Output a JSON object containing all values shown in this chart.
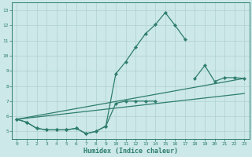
{
  "title": "",
  "xlabel": "Humidex (Indice chaleur)",
  "x_values": [
    0,
    1,
    2,
    3,
    4,
    5,
    6,
    7,
    8,
    9,
    10,
    11,
    12,
    13,
    14,
    15,
    16,
    17,
    18,
    19,
    20,
    21,
    22,
    23
  ],
  "line_peak": [
    null,
    null,
    null,
    null,
    null,
    null,
    null,
    null,
    null,
    null,
    8.8,
    9.6,
    10.55,
    11.45,
    12.05,
    12.85,
    12.0,
    11.1,
    null,
    null,
    null,
    null,
    null,
    null
  ],
  "line_mid": [
    5.8,
    5.6,
    5.2,
    5.1,
    5.1,
    5.1,
    5.2,
    4.85,
    5.0,
    5.35,
    6.85,
    7.0,
    7.0,
    7.0,
    7.0,
    null,
    null,
    null,
    null,
    null,
    null,
    null,
    null,
    null
  ],
  "line_low": [
    5.8,
    5.6,
    5.2,
    5.1,
    5.1,
    5.1,
    5.2,
    4.85,
    5.0,
    5.35,
    null,
    null,
    null,
    null,
    null,
    null,
    null,
    null,
    null,
    null,
    null,
    null,
    null,
    null
  ],
  "line_right": [
    null,
    null,
    null,
    null,
    null,
    null,
    null,
    null,
    null,
    null,
    null,
    null,
    null,
    null,
    null,
    null,
    null,
    null,
    8.5,
    9.35,
    8.3,
    8.55,
    8.55,
    8.5
  ],
  "line_straight": [
    [
      0,
      5.8
    ],
    [
      23,
      8.5
    ]
  ],
  "line_straight2": [
    [
      0,
      5.8
    ],
    [
      23,
      7.8
    ]
  ],
  "color": "#2e7d6e",
  "bg_color": "#cce8e8",
  "grid_color": "#b0d0d0",
  "ylim": [
    4.5,
    13.5
  ],
  "xlim": [
    -0.5,
    23.5
  ],
  "yticks": [
    5,
    6,
    7,
    8,
    9,
    10,
    11,
    12,
    13
  ],
  "xticks": [
    0,
    1,
    2,
    3,
    4,
    5,
    6,
    7,
    8,
    9,
    10,
    11,
    12,
    13,
    14,
    15,
    16,
    17,
    18,
    19,
    20,
    21,
    22,
    23
  ],
  "markersize": 2.2,
  "linewidth": 0.9
}
